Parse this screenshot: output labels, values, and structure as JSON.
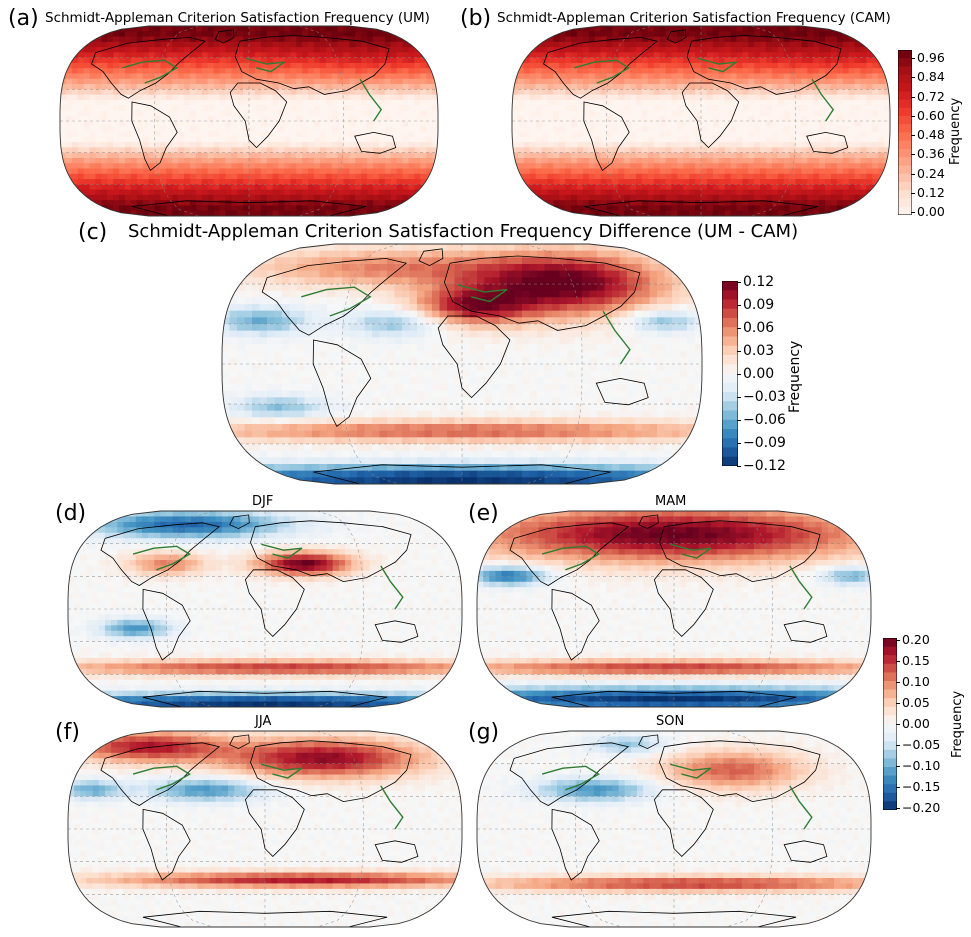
{
  "panels": [
    {
      "id": "a",
      "letter": "(a)",
      "title": "Schmidt-Appleman Criterion Satisfaction Frequency (UM)",
      "pattern": "absolute"
    },
    {
      "id": "b",
      "letter": "(b)",
      "title": "Schmidt-Appleman Criterion Satisfaction Frequency (CAM)",
      "pattern": "absolute"
    },
    {
      "id": "c",
      "letter": "(c)",
      "title": "Schmidt-Appleman Criterion Satisfaction Frequency Difference (UM - CAM)",
      "pattern": "annual-diff"
    },
    {
      "id": "d",
      "letter": "(d)",
      "title": "DJF",
      "pattern": "djf"
    },
    {
      "id": "e",
      "letter": "(e)",
      "title": "MAM",
      "pattern": "mam"
    },
    {
      "id": "f",
      "letter": "(f)",
      "title": "JJA",
      "pattern": "jja"
    },
    {
      "id": "g",
      "letter": "(g)",
      "title": "SON",
      "pattern": "son"
    }
  ],
  "colorbars": [
    {
      "id": "cb1",
      "label": "Frequency",
      "colormap": "Reds",
      "ticks": [
        "0.96",
        "0.84",
        "0.72",
        "0.60",
        "0.48",
        "0.36",
        "0.24",
        "0.12",
        "0.00"
      ]
    },
    {
      "id": "cb2",
      "label": "Frequency",
      "colormap": "RdBu_r",
      "ticks": [
        "0.12",
        "0.09",
        "0.06",
        "0.03",
        "0.00",
        "−0.03",
        "−0.06",
        "−0.09",
        "−0.12"
      ]
    },
    {
      "id": "cb3",
      "label": "Frequency",
      "colormap": "RdBu_r",
      "ticks": [
        "0.20",
        "0.15",
        "0.10",
        "0.05",
        "0.00",
        "−0.05",
        "−0.10",
        "−0.15",
        "−0.20"
      ]
    }
  ],
  "colors": {
    "reds": [
      "#fff5f0",
      "#fee0d2",
      "#fcbba1",
      "#fc9272",
      "#fb6a4a",
      "#ef3b2c",
      "#cb181d",
      "#a50f15",
      "#67000d"
    ],
    "rdbu": [
      "#08306b",
      "#2166ac",
      "#4393c3",
      "#92c5de",
      "#deebf7",
      "#f7f7f7",
      "#fddbc7",
      "#f4a582",
      "#d6604d",
      "#b2182b",
      "#67001f"
    ],
    "coast": "#000000",
    "flightpath": "#2e7d32",
    "grid": "#888888"
  }
}
